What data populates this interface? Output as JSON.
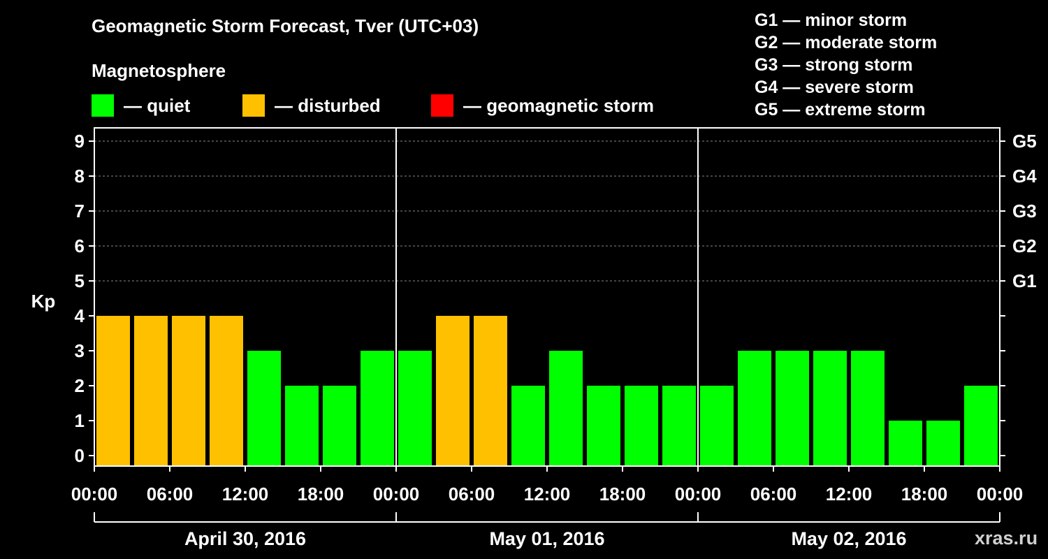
{
  "header": {
    "title": "Geomagnetic Storm Forecast, Tver (UTC+03)",
    "subtitle": "Magnetosphere"
  },
  "legend": [
    {
      "label": "— quiet",
      "color": "#00ff00"
    },
    {
      "label": "— disturbed",
      "color": "#ffc000"
    },
    {
      "label": "— geomagnetic storm",
      "color": "#ff0000"
    }
  ],
  "storm_scale": [
    "G1 — minor storm",
    "G2 — moderate storm",
    "G3 — strong storm",
    "G4 — severe storm",
    "G5 — extreme storm"
  ],
  "watermark": "xras.ru",
  "chart_data": {
    "type": "bar",
    "ylabel": "Kp",
    "ylim": [
      0,
      9
    ],
    "yticks": [
      "0",
      "1",
      "2",
      "3",
      "4",
      "5",
      "6",
      "7",
      "8",
      "9"
    ],
    "right_axis": [
      {
        "kp": 5,
        "label": "G1"
      },
      {
        "kp": 6,
        "label": "G2"
      },
      {
        "kp": 7,
        "label": "G3"
      },
      {
        "kp": 8,
        "label": "G4"
      },
      {
        "kp": 9,
        "label": "G5"
      }
    ],
    "xtick_labels": [
      "00:00",
      "06:00",
      "12:00",
      "18:00",
      "00:00",
      "06:00",
      "12:00",
      "18:00",
      "00:00",
      "06:00",
      "12:00",
      "18:00",
      "00:00"
    ],
    "days": [
      "April 30, 2016",
      "May 01, 2016",
      "May 02, 2016"
    ],
    "interval_hours": 3,
    "values": [
      4,
      4,
      4,
      4,
      3,
      2,
      2,
      3,
      3,
      4,
      4,
      2,
      3,
      2,
      2,
      2,
      2,
      3,
      3,
      3,
      3,
      1,
      1,
      2
    ],
    "thresholds": {
      "disturbed": 4,
      "storm": 5
    },
    "grid": true
  }
}
